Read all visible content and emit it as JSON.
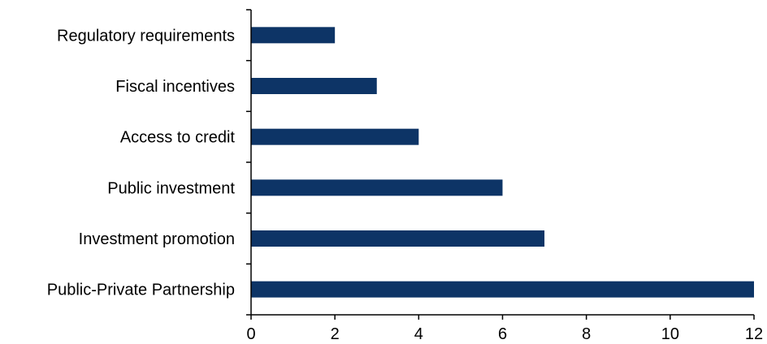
{
  "chart_data": {
    "type": "bar",
    "orientation": "horizontal",
    "title": "",
    "xlabel": "",
    "ylabel": "",
    "categories": [
      "Regulatory requirements",
      "Fiscal incentives",
      "Access to credit",
      "Public investment",
      "Investment promotion",
      "Public-Private Partnership"
    ],
    "values": [
      2,
      3,
      4,
      6,
      7,
      12
    ],
    "xlim": [
      0,
      12
    ],
    "xticks": [
      0,
      2,
      4,
      6,
      8,
      10,
      12
    ],
    "grid": false,
    "legend": "none",
    "bar_color": "#0d3466"
  }
}
